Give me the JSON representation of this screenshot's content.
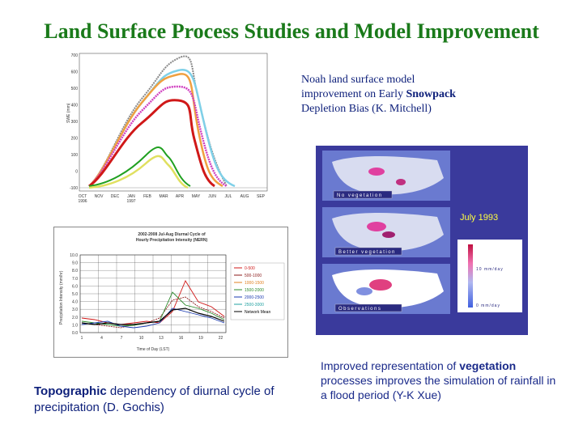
{
  "title": "Land Surface Process Studies and Model Improvement",
  "noah": {
    "line1": "Noah land surface model",
    "line2_pre": "improvement on Early ",
    "line2_bold": "Snowpack",
    "line3": "Depletion Bias (K. Mitchell)"
  },
  "swe_chart": {
    "ylabel": "SWE (mm)",
    "yticks": [
      "700",
      "600",
      "500",
      "400",
      "300",
      "200",
      "100",
      "0",
      "-100"
    ],
    "xticks": [
      "OCT 1996",
      "NOV",
      "DEC",
      "JAN 1997",
      "FEB",
      "MAR",
      "APR",
      "MAY",
      "JUN",
      "JUL",
      "AUG",
      "SEP"
    ]
  },
  "diurnal_chart": {
    "title1": "2002-2008 Jul-Aug Diurnal Cycle of",
    "title2": "Hourly Precipitation Intensity (NERN)",
    "ylabel": "Precipitation Intensity (mm/hr)",
    "xlabel": "Time of Day (LST)",
    "yticks": [
      "10.0",
      "9.0",
      "8.0",
      "7.0",
      "6.0",
      "5.0",
      "4.0",
      "3.0",
      "2.0",
      "1.0",
      "0.0"
    ],
    "xticks": [
      "1",
      "4",
      "7",
      "10",
      "13",
      "16",
      "19",
      "22"
    ],
    "legend": [
      "0-500",
      "500-1000",
      "1000-1500",
      "1500-2000",
      "2000-2500",
      "2500-3000",
      "Network Mean"
    ]
  },
  "maps": {
    "labels": [
      "No vegetation",
      "Better vegetation",
      "Observations"
    ],
    "date": "July 1993",
    "scale_high": "10 mm/day",
    "scale_low": "0 mm/day"
  },
  "veg_caption": {
    "pre": "Improved representation of ",
    "bold": "vegetation",
    "post": " processes improves the simulation of rainfall in a flood period (Y-K Xue)"
  },
  "topo_caption": {
    "bold": "Topographic",
    "post": " dependency  of diurnal cycle of precipitation  (D.  Gochis)"
  },
  "colors": {
    "title": "#1a7a1a",
    "text_blue": "#0d1f7a",
    "map_bg": "#3a3a9c"
  }
}
